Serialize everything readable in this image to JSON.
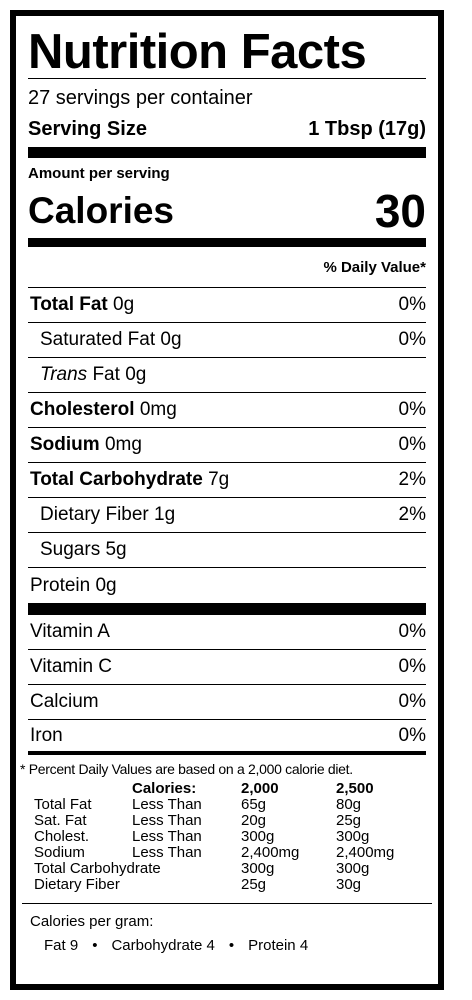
{
  "title": "Nutrition Facts",
  "servings": "27 servings per container",
  "serving_size": {
    "label": "Serving Size",
    "value": "1 Tbsp (17g)"
  },
  "amount_per_serving": "Amount per serving",
  "calories": {
    "label": "Calories",
    "value": "30"
  },
  "dv_header": "% Daily Value*",
  "nutrients": [
    {
      "label": "Total Fat",
      "amount": "0g",
      "dv": "0%",
      "bold": true
    },
    {
      "label": "Saturated Fat",
      "amount": "0g",
      "dv": "0%",
      "indent": true
    },
    {
      "label_italic": "Trans",
      "label": "Fat",
      "amount": "0g",
      "indent": true
    },
    {
      "label": "Cholesterol",
      "amount": "0mg",
      "dv": "0%",
      "bold": true
    },
    {
      "label": "Sodium",
      "amount": "0mg",
      "dv": "0%",
      "bold": true
    },
    {
      "label": "Total Carbohydrate",
      "amount": "7g",
      "dv": "2%",
      "bold": true
    },
    {
      "label": "Dietary Fiber",
      "amount": "1g",
      "dv": "2%",
      "indent": true
    },
    {
      "label": "Sugars",
      "amount": "5g",
      "indent": true
    },
    {
      "label": "Protein",
      "amount": "0g"
    }
  ],
  "vitamins": [
    {
      "label": "Vitamin A",
      "dv": "0%"
    },
    {
      "label": "Vitamin C",
      "dv": "0%"
    },
    {
      "label": "Calcium",
      "dv": "0%"
    },
    {
      "label": "Iron",
      "dv": "0%"
    }
  ],
  "footnote": "* Percent Daily Values are based on a 2,000 calorie diet.",
  "dv_table": {
    "header": [
      "Calories:",
      "2,000",
      "2,500"
    ],
    "rows": [
      [
        "Total Fat",
        "Less Than",
        "65g",
        "80g"
      ],
      [
        "Sat. Fat",
        "Less Than",
        "20g",
        "25g"
      ],
      [
        "Cholest.",
        "Less Than",
        "300g",
        "300g"
      ],
      [
        "Sodium",
        "Less Than",
        "2,400mg",
        "2,400mg"
      ],
      [
        "Total Carbohydrate",
        "300g",
        "300g"
      ],
      [
        "Dietary Fiber",
        "25g",
        "30g"
      ]
    ]
  },
  "calories_per_gram": {
    "label": "Calories per gram:",
    "items": [
      "Fat 9",
      "Carbohydrate 4",
      "Protein 4"
    ]
  }
}
